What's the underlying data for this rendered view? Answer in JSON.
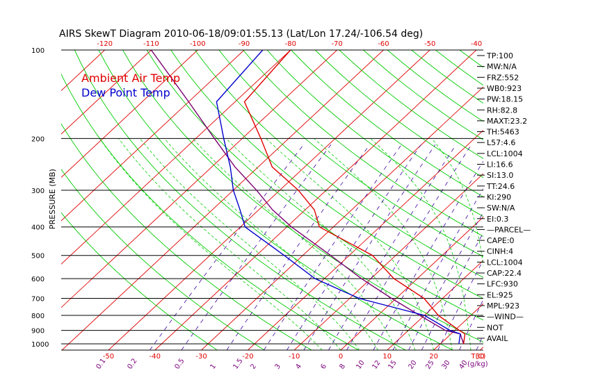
{
  "chart_data": {
    "type": "skew-t",
    "title": "AIRS SkewT Diagram 2010-06-18/09:01:55.13 (Lat/Lon 17.24/-106.54 deg)",
    "ylabel": "PRESSURE (MB)",
    "pressure_ticks": [
      "100",
      "200",
      "300",
      "400",
      "500",
      "600",
      "700",
      "800",
      "900",
      "1000"
    ],
    "pressure_values": [
      100,
      200,
      300,
      400,
      500,
      600,
      700,
      800,
      900,
      1000
    ],
    "top_temp_ticks": [
      "-120",
      "-110",
      "-100",
      "-90",
      "-80",
      "-70",
      "-60",
      "-50",
      "-40"
    ],
    "top_temp_values": [
      -120,
      -110,
      -100,
      -90,
      -80,
      -70,
      -60,
      -50,
      -40
    ],
    "bottom_temp_ticks": [
      "-50",
      "-40",
      "-30",
      "-20",
      "-10",
      "0",
      "10",
      "20",
      "30"
    ],
    "bottom_temp_values": [
      -50,
      -40,
      -30,
      -20,
      -10,
      0,
      10,
      20,
      30
    ],
    "bottom_temp_unit": "T(C)",
    "mixing_ratio_ticks": [
      "0.1",
      "0.2",
      "0.5",
      "1",
      "1.5",
      "2",
      "3",
      "4",
      "6",
      "8",
      "10",
      "12",
      "15",
      "20",
      "25",
      "30",
      "40"
    ],
    "mixing_ratio_unit": "(g/kg)",
    "series": [
      {
        "name": "Ambient Air Temp",
        "color": "#e00000",
        "pressure": [
          100,
          150,
          200,
          250,
          300,
          350,
          400,
          500,
          600,
          700,
          800,
          900,
          925,
          1000
        ],
        "temperature": [
          -80,
          -78,
          -66,
          -57,
          -46,
          -38,
          -33,
          -15,
          -5,
          6,
          13,
          21,
          23,
          25
        ]
      },
      {
        "name": "Dew Point Temp",
        "color": "#0000cc",
        "pressure": [
          100,
          150,
          200,
          250,
          300,
          350,
          400,
          500,
          600,
          700,
          800,
          900,
          925,
          1000
        ],
        "temperature": [
          -86,
          -84,
          -74,
          -66,
          -60,
          -54,
          -49,
          -34,
          -22,
          -8,
          10,
          19,
          22,
          24
        ]
      }
    ],
    "parcel": {
      "color": "#7a0070",
      "pressure": [
        100,
        150,
        200,
        250,
        300,
        350,
        400,
        500,
        600,
        700,
        800,
        900,
        925,
        1000
      ],
      "temperature": [
        -110,
        -90,
        -76,
        -65,
        -55,
        -47,
        -39,
        -24,
        -12,
        -1,
        9,
        18,
        22,
        25
      ]
    },
    "grid": true,
    "legend_position": "top-left"
  },
  "indices": [
    "TP:100",
    "MW:N/A",
    "FRZ:552",
    "WB0:923",
    "PW:18.15",
    "RH:82.8",
    "MAXT:23.2",
    "TH:5463",
    "L57:4.6",
    "LCL:1004",
    "LI:16.6",
    "SI:13.0",
    "TT:24.6",
    "KI:290",
    "SW:N/A",
    "EI:0.3",
    "—PARCEL—",
    "CAPE:0",
    "CINH:4",
    "LCL:1004",
    "CAP:22.4",
    "LFC:930",
    "EL:925",
    "MPL:923",
    "—WIND—",
    "NOT",
    "AVAIL"
  ],
  "colors": {
    "isotherm": "#e00000",
    "dry_adiabat": "#00cc00",
    "moist_adiabat": "#00cc00",
    "mixing_ratio": "#3a00a0",
    "mixing_ratio_label": "#7a007a",
    "isobar": "#000000"
  }
}
